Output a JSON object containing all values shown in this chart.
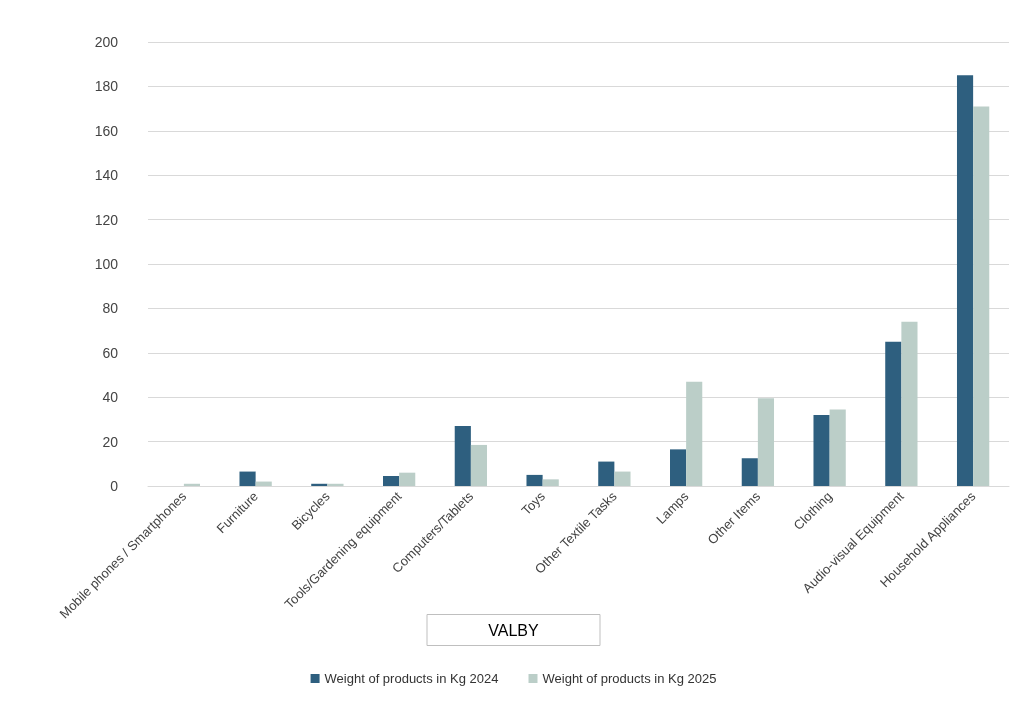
{
  "chart_data": {
    "type": "bar",
    "title": "VALBY",
    "categories": [
      "Mobile phones / Smartphones",
      "Furniture",
      "Bicycles",
      "Tools/Gardening equipment",
      "Computers/Tablets",
      "Toys",
      "Other Textile Tasks",
      "Lamps",
      "Other Items",
      "Clothing",
      "Audio-visual Equipment",
      "Household Appliances"
    ],
    "series": [
      {
        "name": "Weight of products in Kg 2024",
        "color": "#2e5f7f",
        "values": [
          0,
          6.5,
          1,
          4.5,
          27,
          5,
          11,
          16.5,
          12.5,
          32,
          65,
          185
        ]
      },
      {
        "name": "Weight of products in Kg 2025",
        "color": "#bbcec8",
        "values": [
          1,
          2,
          1,
          6,
          18.5,
          3,
          6.5,
          47,
          39.5,
          34.5,
          74,
          171
        ]
      }
    ],
    "ylim": [
      0,
      200
    ],
    "yticks": [
      0,
      20,
      40,
      60,
      80,
      100,
      120,
      140,
      160,
      180,
      200
    ],
    "grid": "y",
    "legend": "bottom"
  }
}
